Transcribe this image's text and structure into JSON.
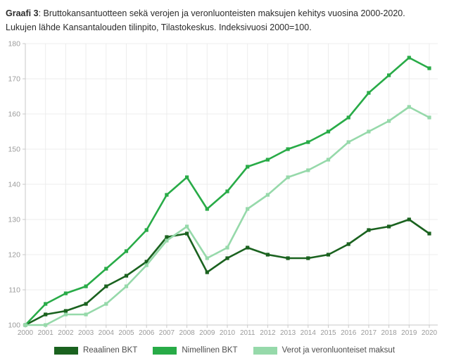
{
  "title": {
    "bold": "Graafi 3",
    "rest": ": Bruttokansantuotteen sekä verojen ja veronluonteisten maksujen kehitys vuosina 2000-2020.",
    "line2": "Lukujen lähde Kansantalouden tilinpito, Tilastokeskus. Indeksivuosi 2000=100."
  },
  "chart_data": {
    "type": "line",
    "x": [
      "2000",
      "2001",
      "2002",
      "2003",
      "2004",
      "2005",
      "2006",
      "2007",
      "2008",
      "2009",
      "2010",
      "2011",
      "2012",
      "2013",
      "2014",
      "2015",
      "2016",
      "2017",
      "2018",
      "2019",
      "2020"
    ],
    "series": [
      {
        "name": "Reaalinen BKT",
        "color": "#1a621f",
        "values": [
          100,
          103,
          104,
          106,
          111,
          114,
          118,
          125,
          126,
          115,
          119,
          122,
          120,
          119,
          119,
          120,
          123,
          127,
          128,
          130,
          126
        ]
      },
      {
        "name": "Nimellinen BKT",
        "color": "#28ab47",
        "values": [
          100,
          106,
          109,
          111,
          116,
          121,
          127,
          137,
          142,
          133,
          138,
          145,
          147,
          150,
          152,
          155,
          159,
          166,
          171,
          176,
          173
        ]
      },
      {
        "name": "Verot ja veronluonteiset maksut",
        "color": "#96d9aa",
        "values": [
          100,
          100,
          103,
          103,
          106,
          111,
          117,
          124,
          128,
          119,
          122,
          133,
          137,
          142,
          144,
          147,
          152,
          155,
          158,
          162,
          159
        ]
      }
    ],
    "ylim": [
      100,
      180
    ],
    "ytick_step": 10,
    "grid": true,
    "legend_position": "bottom",
    "colors": {
      "gridline": "#ececec",
      "axis_line": "#c9c9c9",
      "tick_label": "#9b9b9b"
    }
  }
}
